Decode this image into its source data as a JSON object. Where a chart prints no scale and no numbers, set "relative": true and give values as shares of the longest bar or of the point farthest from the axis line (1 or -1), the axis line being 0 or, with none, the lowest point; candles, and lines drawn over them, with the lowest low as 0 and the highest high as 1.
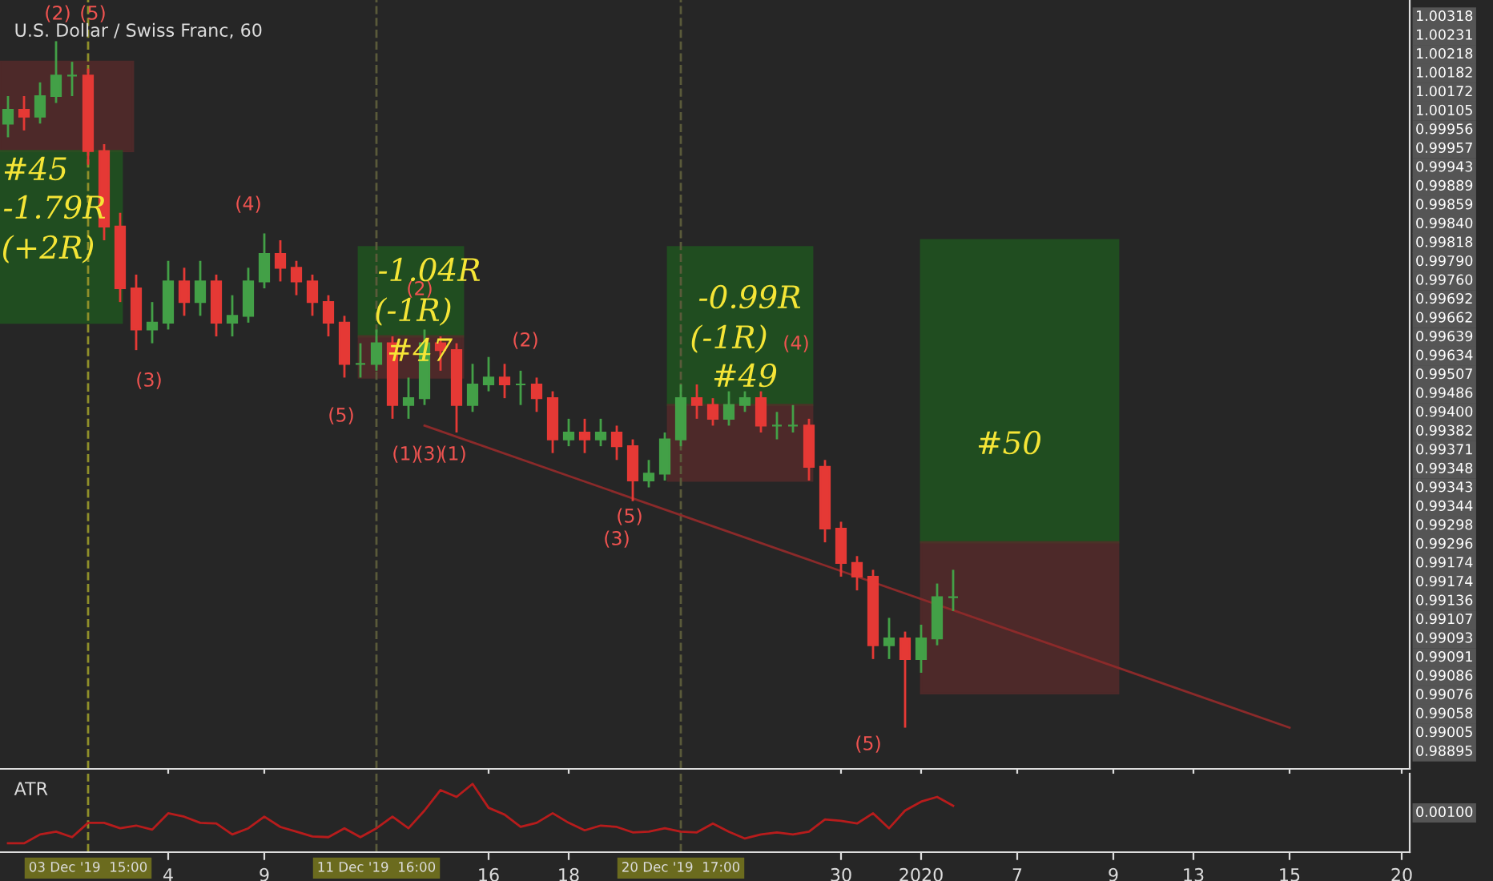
{
  "chart_data": [
    {
      "type": "candlestick",
      "title": "U.S. Dollar / Swiss Franc, 60",
      "relative": true,
      "tick_labels": false,
      "categories": [
        null,
        null,
        null,
        null,
        null,
        "03 Dec '19  15:00",
        null,
        null,
        null,
        null,
        "4",
        null,
        null,
        null,
        null,
        null,
        "9",
        null,
        null,
        null,
        null,
        null,
        null,
        "11 Dec '19  16:00",
        null,
        null,
        null,
        null,
        null,
        null,
        "16",
        null,
        null,
        null,
        null,
        "18",
        null,
        null,
        null,
        null,
        null,
        null,
        "20 Dec '19  17:00",
        null,
        null,
        null,
        null,
        null,
        null,
        null,
        null,
        null,
        "30",
        null,
        null,
        null,
        null,
        "2020",
        null,
        null,
        null,
        null,
        null,
        "7",
        null,
        null,
        null,
        null,
        null,
        "9",
        null,
        null,
        null,
        null,
        "13",
        null,
        null,
        null,
        null,
        null,
        "15",
        null,
        null,
        null,
        null,
        null,
        null,
        "20"
      ],
      "ohlc": [
        [
          0.88,
          0.92,
          0.86,
          0.9
        ],
        [
          0.9,
          0.92,
          0.87,
          0.89
        ],
        [
          0.89,
          0.94,
          0.88,
          0.92
        ],
        [
          0.92,
          1.0,
          0.91,
          0.95
        ],
        [
          0.95,
          0.97,
          0.92,
          0.95
        ],
        [
          0.95,
          0.96,
          0.82,
          0.84
        ],
        [
          0.84,
          0.85,
          0.71,
          0.73
        ],
        [
          0.73,
          0.75,
          0.62,
          0.64
        ],
        [
          0.64,
          0.66,
          0.55,
          0.58
        ],
        [
          0.58,
          0.62,
          0.56,
          0.59
        ],
        [
          0.59,
          0.68,
          0.58,
          0.65
        ],
        [
          0.65,
          0.67,
          0.6,
          0.62
        ],
        [
          0.62,
          0.68,
          0.6,
          0.65
        ],
        [
          0.65,
          0.66,
          0.57,
          0.59
        ],
        [
          0.59,
          0.63,
          0.57,
          0.6
        ],
        [
          0.6,
          0.67,
          0.59,
          0.65
        ],
        [
          0.65,
          0.72,
          0.64,
          0.69
        ],
        [
          0.69,
          0.71,
          0.65,
          0.67
        ],
        [
          0.67,
          0.68,
          0.63,
          0.65
        ],
        [
          0.65,
          0.66,
          0.6,
          0.62
        ],
        [
          0.62,
          0.63,
          0.57,
          0.59
        ],
        [
          0.59,
          0.6,
          0.51,
          0.53
        ],
        [
          0.53,
          0.56,
          0.51,
          0.53
        ],
        [
          0.53,
          0.58,
          0.52,
          0.56
        ],
        [
          0.56,
          0.57,
          0.45,
          0.47
        ],
        [
          0.47,
          0.51,
          0.45,
          0.48
        ],
        [
          0.48,
          0.58,
          0.47,
          0.56
        ],
        [
          0.56,
          0.57,
          0.52,
          0.55
        ],
        [
          0.55,
          0.56,
          0.43,
          0.47
        ],
        [
          0.47,
          0.53,
          0.46,
          0.5
        ],
        [
          0.5,
          0.54,
          0.49,
          0.51
        ],
        [
          0.51,
          0.53,
          0.48,
          0.5
        ],
        [
          0.5,
          0.52,
          0.47,
          0.5
        ],
        [
          0.5,
          0.51,
          0.46,
          0.48
        ],
        [
          0.48,
          0.49,
          0.4,
          0.42
        ],
        [
          0.42,
          0.45,
          0.41,
          0.43
        ],
        [
          0.43,
          0.45,
          0.4,
          0.42
        ],
        [
          0.42,
          0.45,
          0.41,
          0.43
        ],
        [
          0.43,
          0.44,
          0.39,
          0.41
        ],
        [
          0.41,
          0.42,
          0.33,
          0.36
        ],
        [
          0.36,
          0.39,
          0.35,
          0.37
        ],
        [
          0.37,
          0.43,
          0.36,
          0.42
        ],
        [
          0.42,
          0.5,
          0.41,
          0.48
        ],
        [
          0.48,
          0.5,
          0.45,
          0.47
        ],
        [
          0.47,
          0.48,
          0.44,
          0.45
        ],
        [
          0.45,
          0.49,
          0.44,
          0.47
        ],
        [
          0.47,
          0.49,
          0.46,
          0.48
        ],
        [
          0.48,
          0.49,
          0.43,
          0.44
        ],
        [
          0.44,
          0.46,
          0.42,
          0.44
        ],
        [
          0.44,
          0.47,
          0.43,
          0.44
        ],
        [
          0.44,
          0.45,
          0.36,
          0.38
        ],
        [
          0.38,
          0.39,
          0.27,
          0.29
        ],
        [
          0.29,
          0.3,
          0.22,
          0.24
        ],
        [
          0.24,
          0.25,
          0.2,
          0.22
        ],
        [
          0.22,
          0.23,
          0.1,
          0.12
        ],
        [
          0.12,
          0.16,
          0.1,
          0.13
        ],
        [
          0.13,
          0.14,
          0.0,
          0.1
        ],
        [
          0.1,
          0.15,
          0.08,
          0.13
        ],
        [
          0.13,
          0.21,
          0.12,
          0.19
        ],
        [
          0.19,
          0.23,
          0.17,
          0.19
        ],
        null,
        null,
        null,
        null,
        null,
        null,
        null,
        null,
        null,
        null,
        null,
        null,
        null,
        null,
        null,
        null,
        null,
        null,
        null,
        null,
        null,
        null,
        null,
        null,
        null,
        null,
        null,
        null
      ],
      "colors": [
        "#43a047",
        "#e53935",
        "#43a047",
        "#43a047",
        "#43a047",
        "#e53935",
        "#e53935",
        "#e53935",
        "#e53935",
        "#43a047",
        "#43a047",
        "#e53935",
        "#43a047",
        "#e53935",
        "#43a047",
        "#43a047",
        "#43a047",
        "#e53935",
        "#e53935",
        "#e53935",
        "#e53935",
        "#e53935",
        "#43a047",
        "#43a047",
        "#e53935",
        "#43a047",
        "#43a047",
        "#e53935",
        "#e53935",
        "#43a047",
        "#43a047",
        "#e53935",
        "#43a047",
        "#e53935",
        "#e53935",
        "#43a047",
        "#e53935",
        "#43a047",
        "#e53935",
        "#e53935",
        "#43a047",
        "#43a047",
        "#43a047",
        "#e53935",
        "#e53935",
        "#43a047",
        "#43a047",
        "#e53935",
        "#43a047",
        "#43a047",
        "#e53935",
        "#e53935",
        "#e53935",
        "#e53935",
        "#e53935",
        "#43a047",
        "#e53935",
        "#43a047",
        "#43a047",
        "#43a047",
        null,
        null,
        null,
        null,
        null,
        null,
        null,
        null,
        null,
        null,
        null,
        null,
        null,
        null,
        null,
        null,
        null,
        null,
        null,
        null,
        null,
        null,
        null,
        null,
        null,
        null,
        null,
        null
      ],
      "series": [
        {
          "type": "line",
          "color": "#8b2a2a",
          "values": [
            null,
            null,
            null,
            null,
            null,
            null,
            null,
            null,
            null,
            null,
            null,
            null,
            null,
            null,
            null,
            null,
            null,
            null,
            null,
            null,
            null,
            null,
            null,
            null,
            null,
            null,
            0.44,
            null,
            null,
            null,
            null,
            null,
            null,
            null,
            null,
            null,
            null,
            null,
            null,
            null,
            null,
            null,
            null,
            null,
            null,
            null,
            null,
            null,
            null,
            null,
            null,
            null,
            null,
            null,
            null,
            null,
            null,
            null,
            null,
            null,
            null,
            null,
            null,
            null,
            null,
            null,
            null,
            null,
            null,
            null,
            null,
            null,
            null,
            null,
            null,
            null,
            null,
            null,
            null,
            null,
            0.0,
            null,
            null,
            null,
            null,
            null,
            null,
            null
          ]
        }
      ],
      "ref_lines": [
        {
          "axis": "x",
          "value": "03 Dec '19  15:00",
          "color": "#8f8f2a",
          "line_style": "dashed"
        },
        {
          "axis": "x",
          "value": "11 Dec '19  16:00",
          "color": "#5a5a3a",
          "line_style": "dashed"
        },
        {
          "axis": "x",
          "value": "20 Dec '19  17:00",
          "color": "#5a5a3a",
          "line_style": "dashed"
        }
      ],
      "annotations": [
        "(2)",
        "(5)",
        "(3)",
        "(4)",
        "(5)",
        "(2)",
        "(1)",
        "(3)",
        "(1)",
        "(2)",
        "(3)",
        "(5)",
        "(4)",
        "(5)",
        "#45",
        "-1.79R",
        "(+2R)",
        "-1.04R",
        "(-1R)",
        "#47",
        "-0.99R",
        "(-1R)",
        "#49",
        "#50",
        "1.00318",
        "1.00231",
        "1.00218",
        "1.00182",
        "1.00172",
        "1.00105",
        "0.99956",
        "0.99957",
        "0.99943",
        "0.99889",
        "0.99859",
        "0.99840",
        "0.99818",
        "0.99790",
        "0.99760",
        "0.99692",
        "0.99662",
        "0.99639",
        "0.99634",
        "0.99507",
        "0.99486",
        "0.99400",
        "0.99382",
        "0.99371",
        "0.99348",
        "0.99343",
        "0.99344",
        "0.99298",
        "0.99296",
        "0.99174",
        "0.99174",
        "0.99136",
        "0.99107",
        "0.99093",
        "0.99091",
        "0.99086",
        "0.99076",
        "0.99058",
        "0.99005",
        "0.98895"
      ]
    },
    {
      "type": "line",
      "title": "ATR",
      "relative": true,
      "categories": [
        null,
        null,
        null,
        null,
        null,
        "03 Dec '19  15:00",
        null,
        null,
        null,
        null,
        "4",
        null,
        null,
        null,
        null,
        null,
        "9",
        null,
        null,
        null,
        null,
        null,
        null,
        "11 Dec '19  16:00",
        null,
        null,
        null,
        null,
        null,
        null,
        "16",
        null,
        null,
        null,
        null,
        "18",
        null,
        null,
        null,
        null,
        null,
        null,
        "20 Dec '19  17:00",
        null,
        null,
        null,
        null,
        null,
        null,
        null,
        null,
        null,
        "30",
        null,
        null,
        null,
        null,
        "2020",
        null,
        null,
        null,
        null,
        null,
        "7",
        null,
        null,
        null,
        null,
        null,
        "9",
        null,
        null,
        null,
        null,
        "13",
        null,
        null,
        null,
        null,
        null,
        "15",
        null,
        null,
        null,
        null,
        null,
        null,
        "20"
      ],
      "series": [
        {
          "color": "#b71c1c",
          "values": [
            0.13,
            0.13,
            0.26,
            0.3,
            0.22,
            0.43,
            0.43,
            0.35,
            0.39,
            0.33,
            0.57,
            0.52,
            0.43,
            0.42,
            0.26,
            0.35,
            0.52,
            0.37,
            0.3,
            0.23,
            0.22,
            0.35,
            0.22,
            0.35,
            0.52,
            0.35,
            0.61,
            0.91,
            0.81,
            1.0,
            0.65,
            0.55,
            0.37,
            0.43,
            0.57,
            0.43,
            0.32,
            0.39,
            0.37,
            0.29,
            0.3,
            0.35,
            0.3,
            0.29,
            0.42,
            0.3,
            0.2,
            0.26,
            0.29,
            0.26,
            0.3,
            0.48,
            0.46,
            0.42,
            0.57,
            0.35,
            0.61,
            0.74,
            0.81,
            0.68,
            null,
            null,
            null,
            null,
            null,
            null,
            null,
            null,
            null,
            null,
            null,
            null,
            null,
            null,
            null,
            null,
            null,
            null,
            null,
            null,
            null,
            null,
            null,
            null,
            null,
            null,
            null,
            null
          ]
        }
      ],
      "ref_lines": [
        {
          "axis": "x",
          "value": "03 Dec '19  15:00",
          "color": "#8f8f2a",
          "line_style": "dashed"
        },
        {
          "axis": "x",
          "value": "11 Dec '19  16:00",
          "color": "#5a5a3a",
          "line_style": "dashed"
        },
        {
          "axis": "x",
          "value": "20 Dec '19  17:00",
          "color": "#5a5a3a",
          "line_style": "dashed"
        }
      ],
      "annotations": [
        "0.00100"
      ]
    }
  ]
}
